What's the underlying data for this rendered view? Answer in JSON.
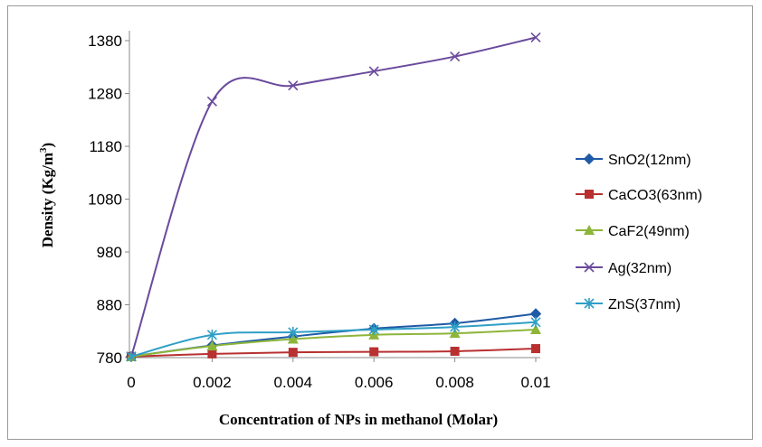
{
  "chart_data": {
    "type": "line",
    "title": "",
    "xlabel": "Concentration of NPs in methanol (Molar)",
    "ylabel": "Density (Kg/m",
    "ylabel_sup": "3",
    "ylabel_close": ")",
    "x": [
      0,
      0.002,
      0.004,
      0.006,
      0.008,
      0.01
    ],
    "x_tick_labels": [
      "0",
      "0.002",
      "0.004",
      "0.006",
      "0.008",
      "0.01"
    ],
    "y_ticks": [
      780,
      880,
      980,
      1080,
      1180,
      1280,
      1380
    ],
    "y_tick_labels": [
      "780",
      "880",
      "980",
      "1080",
      "1180",
      "1280",
      "1380"
    ],
    "ylim": [
      780,
      1400
    ],
    "xlim": [
      0,
      0.01
    ],
    "grid": false,
    "legend_position": "right",
    "series": [
      {
        "name": "SnO2(12nm)",
        "color": "#1f5aa6",
        "marker": "diamond",
        "values": [
          782,
          803,
          820,
          835,
          845,
          863
        ]
      },
      {
        "name": "CaCO3(63nm)",
        "color": "#b83030",
        "marker": "square",
        "values": [
          782,
          787,
          790,
          791,
          792,
          797
        ]
      },
      {
        "name": "CaF2(49nm)",
        "color": "#8db53a",
        "marker": "triangle",
        "values": [
          782,
          802,
          815,
          823,
          826,
          833
        ]
      },
      {
        "name": "Ag(32nm)",
        "color": "#6a4a9c",
        "marker": "x",
        "values": [
          782,
          1265,
          1295,
          1322,
          1350,
          1386
        ]
      },
      {
        "name": "ZnS(37nm)",
        "color": "#2f9fc6",
        "marker": "star",
        "values": [
          782,
          823,
          828,
          833,
          838,
          847
        ]
      }
    ]
  }
}
